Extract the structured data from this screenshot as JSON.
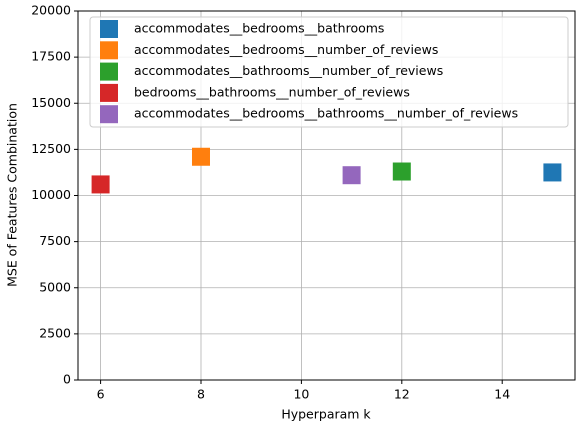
{
  "chart_data": {
    "type": "scatter",
    "xlabel": "Hyperparam k",
    "ylabel": "MSE of Features Combination",
    "series": [
      {
        "name": "accommodates__bedrooms__bathrooms",
        "color": "#1f77b4",
        "x": [
          15
        ],
        "values": [
          11250
        ]
      },
      {
        "name": "accommodates__bedrooms__number_of_reviews",
        "color": "#ff7f0e",
        "x": [
          8
        ],
        "values": [
          12100
        ]
      },
      {
        "name": "accommodates__bathrooms__number_of_reviews",
        "color": "#2ca02c",
        "x": [
          12
        ],
        "values": [
          11300
        ]
      },
      {
        "name": "bedrooms__bathrooms__number_of_reviews",
        "color": "#d62728",
        "x": [
          6
        ],
        "values": [
          10600
        ]
      },
      {
        "name": "accommodates__bedrooms__bathrooms__number_of_reviews",
        "color": "#9467bd",
        "x": [
          11
        ],
        "values": [
          11100
        ]
      }
    ],
    "xlim": [
      5.55,
      15.45
    ],
    "xticks": [
      6,
      8,
      10,
      12,
      14
    ],
    "ylim": [
      0,
      20000
    ],
    "yticks": [
      0,
      2500,
      5000,
      7500,
      10000,
      12500,
      15000,
      17500,
      20000
    ],
    "grid": true,
    "legend": "upper-left"
  }
}
